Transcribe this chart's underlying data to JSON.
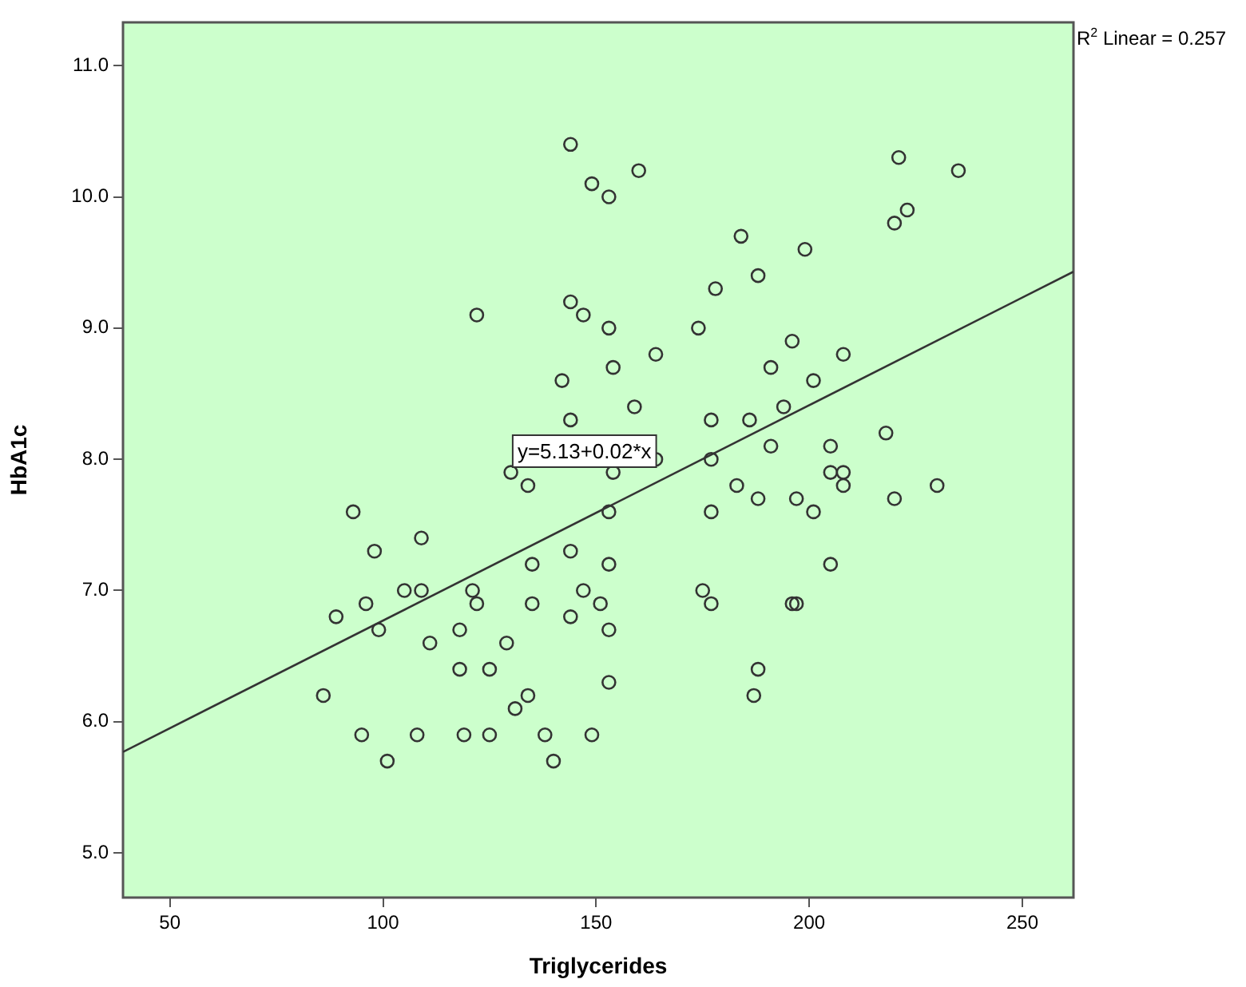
{
  "chart_data": {
    "type": "scatter",
    "xlabel": "Triglycerides",
    "ylabel": "HbA1c",
    "xlim": [
      39,
      262
    ],
    "xticks": [
      50,
      100,
      150,
      200,
      250
    ],
    "ylim": [
      4.66,
      11.33
    ],
    "yticks": [
      {
        "value": 5,
        "label": "5.0"
      },
      {
        "value": 6,
        "label": "6.0"
      },
      {
        "value": 7,
        "label": "7.0"
      },
      {
        "value": 8,
        "label": "8.0"
      },
      {
        "value": 9,
        "label": "9.0"
      },
      {
        "value": 10,
        "label": "10.0"
      },
      {
        "value": 11,
        "label": "11.0"
      }
    ],
    "marker": "circle",
    "legend": false,
    "series": [
      {
        "color": "#333333",
        "x": [
          144,
          149,
          153,
          160,
          221,
          235,
          223,
          220,
          184,
          199,
          188,
          178,
          122,
          144,
          147,
          153,
          174,
          196,
          164,
          208,
          154,
          191,
          142,
          201,
          159,
          194,
          144,
          177,
          186,
          191,
          205,
          218,
          130,
          134,
          153,
          159,
          164,
          177,
          154,
          205,
          208,
          183,
          188,
          197,
          208,
          220,
          230,
          93,
          153,
          177,
          201,
          98,
          109,
          144,
          135,
          153,
          205,
          89,
          96,
          99,
          105,
          109,
          121,
          122,
          135,
          147,
          144,
          151,
          153,
          175,
          177,
          196,
          197,
          111,
          118,
          129,
          118,
          125,
          188,
          153,
          86,
          134,
          131,
          187,
          95,
          108,
          119,
          125,
          138,
          149,
          101,
          140
        ],
        "values": [
          10.4,
          10.1,
          10.0,
          10.2,
          10.3,
          10.2,
          9.9,
          9.8,
          9.7,
          9.6,
          9.4,
          9.3,
          9.1,
          9.2,
          9.1,
          9.0,
          9.0,
          8.9,
          8.8,
          8.8,
          8.7,
          8.7,
          8.6,
          8.6,
          8.4,
          8.4,
          8.3,
          8.3,
          8.3,
          8.1,
          8.1,
          8.2,
          7.9,
          7.8,
          null,
          null,
          8.0,
          8.0,
          7.9,
          7.9,
          7.9,
          7.8,
          7.7,
          7.7,
          7.8,
          7.7,
          7.8,
          7.6,
          7.6,
          7.6,
          7.6,
          7.3,
          7.4,
          7.3,
          7.2,
          7.2,
          7.2,
          6.8,
          6.9,
          6.7,
          7.0,
          7.0,
          7.0,
          6.9,
          6.9,
          7.0,
          6.8,
          6.9,
          6.7,
          7.0,
          6.9,
          6.9,
          6.9,
          6.6,
          6.7,
          6.6,
          6.4,
          6.4,
          6.4,
          6.3,
          6.2,
          6.2,
          6.1,
          6.2,
          5.9,
          5.9,
          5.9,
          5.9,
          5.9,
          5.9,
          5.7,
          5.7
        ]
      },
      {
        "type": "line",
        "color": "#333333",
        "marker": "none",
        "x": [
          39,
          262
        ],
        "values": [
          5.77,
          9.43
        ]
      }
    ],
    "annotations": [
      "y=5.13+0.02*x",
      "R$^{2}$ Linear = 0.257"
    ]
  }
}
